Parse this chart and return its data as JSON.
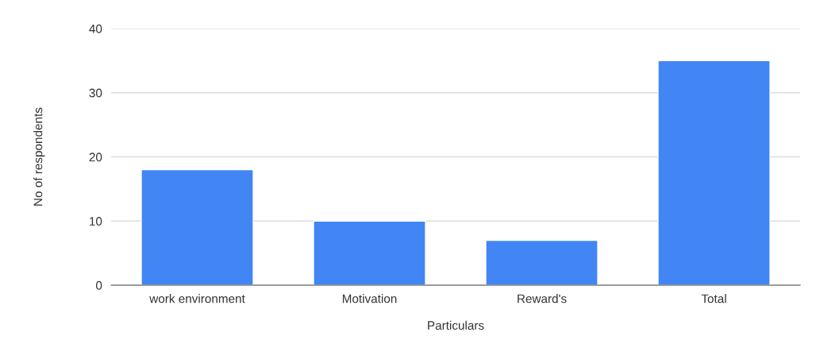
{
  "chart_data": {
    "type": "bar",
    "xlabel": "Particulars",
    "ylabel": "No of respondents",
    "categories": [
      "work environment",
      "Motivation",
      "Reward's",
      "Total"
    ],
    "values": [
      18,
      10,
      7,
      35
    ],
    "color": "#4285f4",
    "ylim": [
      0,
      40
    ],
    "yticks": [
      0,
      10,
      20,
      30,
      40
    ],
    "grid": "y"
  }
}
